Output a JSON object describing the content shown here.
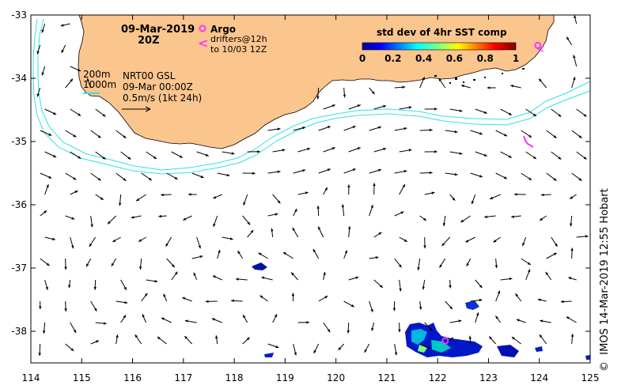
{
  "map": {
    "date_title": "09-Mar-2019",
    "time_title": "20Z",
    "argo_label": "Argo",
    "drifter_label_1": "drifters@12h",
    "drifter_label_2": "to 10/03 12Z",
    "isobath_200": "200m",
    "isobath_1000": "1000m",
    "product_line1": "NRT00 GSL",
    "product_line2": "09-Mar 00:00Z",
    "vector_scale": "0.5m/s (1kt 24h)",
    "colorbar_title": "std dev of 4hr SST comp",
    "colorbar_ticks": [
      "0",
      "0.2",
      "0.4",
      "0.6",
      "0.8",
      "1"
    ],
    "credit": "IMOS 14-Mar-2019 12:55 Hobart",
    "copyright_symbol": "©",
    "x_ticks": [
      "114",
      "115",
      "116",
      "117",
      "118",
      "119",
      "120",
      "121",
      "122",
      "123",
      "124",
      "125"
    ],
    "y_ticks": [
      "-33",
      "-34",
      "-35",
      "-36",
      "-37",
      "-38"
    ],
    "lon_range": [
      114,
      125
    ],
    "lat_range": [
      -38.5,
      -33
    ],
    "colors": {
      "land": "#fbc58e",
      "isobath": "#33e0e6",
      "argo": "#ff33ff",
      "drifter": "#ff33ff",
      "arrow": "#000000"
    },
    "argo_floats": [
      {
        "lon": 122.15,
        "lat": -38.15
      },
      {
        "lon": 123.97,
        "lat": -33.48
      }
    ]
  }
}
